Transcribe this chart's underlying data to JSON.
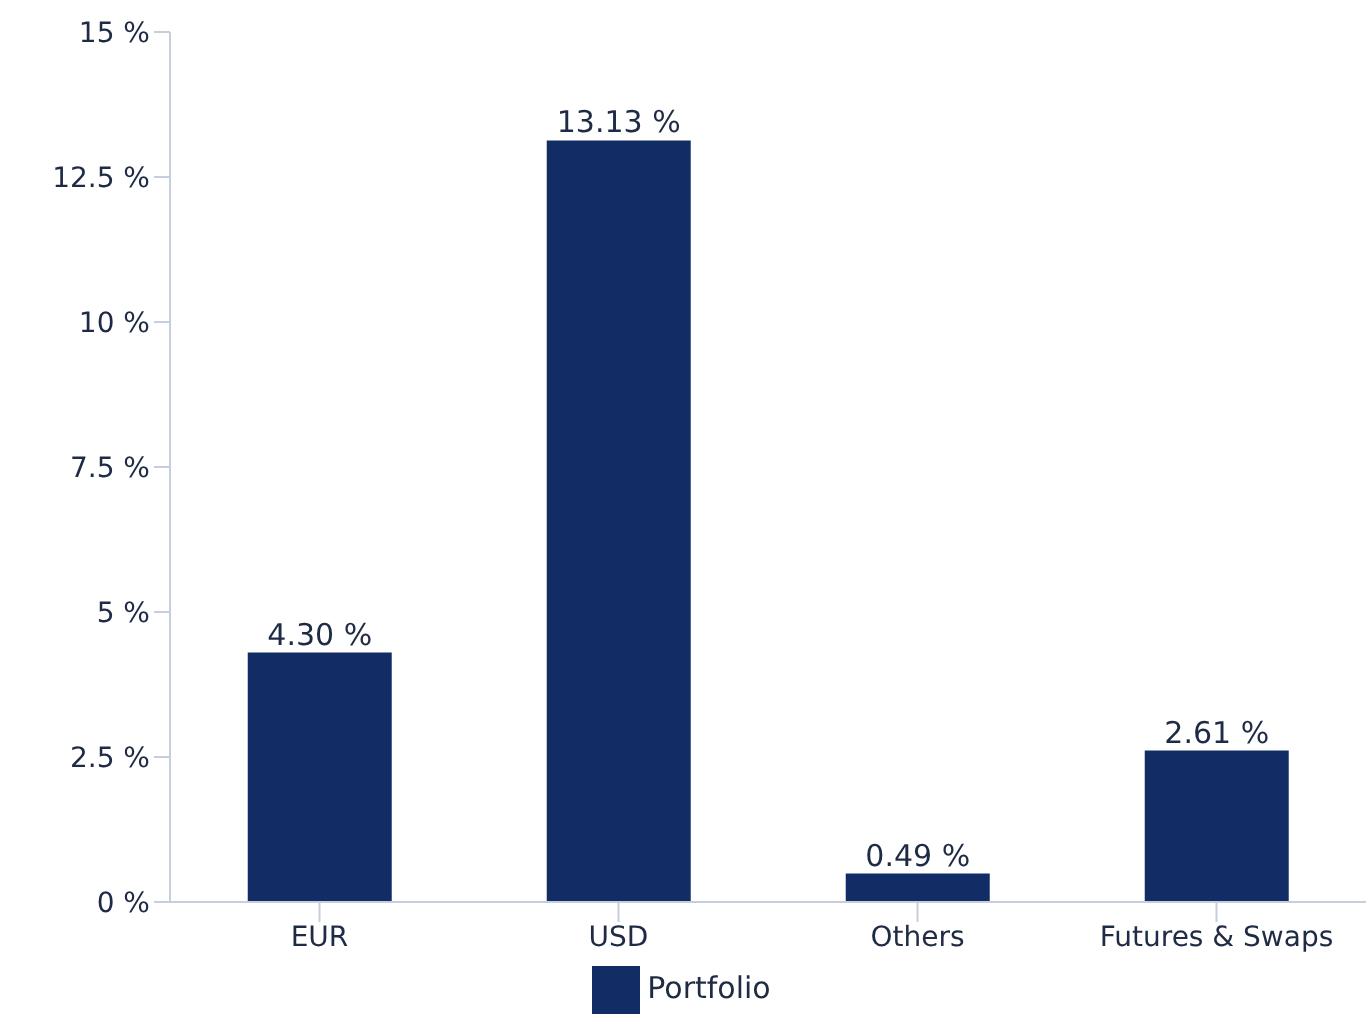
{
  "chart_data": {
    "type": "bar",
    "categories": [
      "EUR",
      "USD",
      "Others",
      "Futures & Swaps"
    ],
    "series": [
      {
        "name": "Portfolio",
        "color": "#122d66",
        "values": [
          4.3,
          13.13,
          0.49,
          2.61
        ],
        "value_labels": [
          "4.30 %",
          "13.13 %",
          "0.49 %",
          "2.61 %"
        ]
      }
    ],
    "ylim": [
      0,
      15
    ],
    "yticks": [
      {
        "value": 0,
        "label": "0 %"
      },
      {
        "value": 2.5,
        "label": "2.5 %"
      },
      {
        "value": 5,
        "label": "5 %"
      },
      {
        "value": 7.5,
        "label": "7.5 %"
      },
      {
        "value": 10,
        "label": "10 %"
      },
      {
        "value": 12.5,
        "label": "12.5 %"
      },
      {
        "value": 15,
        "label": "15 %"
      }
    ],
    "legend": "bottom"
  }
}
